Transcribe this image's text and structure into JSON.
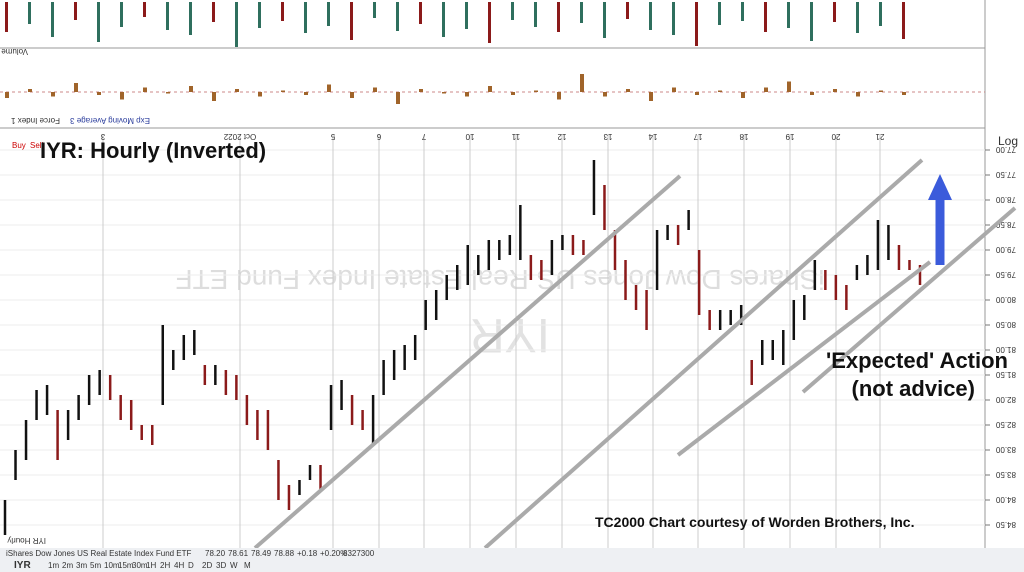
{
  "toolbar": {
    "symbol": "IYR",
    "intervals": [
      "1m",
      "2m",
      "3m",
      "5m",
      "10m",
      "15m",
      "30m",
      "1H",
      "2H",
      "4H",
      "D",
      "2D",
      "3D",
      "W",
      "M"
    ]
  },
  "status": {
    "name": "iShares Dow Jones US Real Estate Index Fund ETF",
    "quote": [
      "78.20",
      "78.61",
      "78.49",
      "78.88",
      "+0.18",
      "+0.20%",
      "8327300"
    ],
    "symbol": "IYR Hourly"
  },
  "panels": {
    "volume": {
      "label": "Volume",
      "values": [
        30,
        22,
        35,
        18,
        40,
        25,
        15,
        28,
        33,
        20,
        45,
        26,
        19,
        31,
        24,
        38,
        16,
        29,
        22,
        35,
        27,
        41,
        18,
        25,
        30,
        21,
        36,
        17,
        28,
        33,
        44,
        23,
        19,
        30,
        26,
        39,
        20,
        31,
        24,
        37
      ]
    },
    "force": {
      "labels": [
        "Force Index 1",
        "Exp Moving Average 3"
      ],
      "values": [
        4,
        -2,
        3,
        -6,
        2,
        5,
        -3,
        1,
        -4,
        6,
        -2,
        3,
        -1,
        2,
        -5,
        4,
        -3,
        8,
        -2,
        1,
        3,
        -4,
        2,
        -1,
        5,
        -12,
        3,
        -2,
        6,
        -3,
        2,
        -1,
        4,
        -3,
        -7,
        2,
        -2,
        3,
        -1,
        2
      ]
    }
  },
  "chart_data": {
    "type": "ohlc",
    "title": "IYR:  Hourly (Inverted)",
    "buttons": [
      "Buy",
      "Sell"
    ],
    "scale_label": "Log",
    "annotations": [
      "'Expected' Action",
      "(not advice)"
    ],
    "credit": "TC2000 Chart courtesy of Worden Brothers, Inc.",
    "watermark": "iShares Dow Jones US Real Estate Index Fund ETF",
    "watermark_symbol": "IYR",
    "x_labels": [
      "3",
      "Oct 2022",
      "5",
      "6",
      "7",
      "10",
      "11",
      "12",
      "13",
      "14",
      "17",
      "18",
      "19",
      "20",
      "21"
    ],
    "low": [
      84.0,
      83.0,
      82.4,
      81.8,
      81.7,
      82.2,
      82.2,
      81.9,
      81.5,
      81.4,
      81.5,
      81.9,
      82.0,
      82.5,
      82.5,
      80.5,
      81.0,
      80.7,
      80.6,
      81.3,
      81.3,
      81.4,
      81.5,
      81.9,
      82.2,
      82.2,
      83.2,
      83.7,
      83.6,
      83.3,
      83.3,
      81.7,
      81.6,
      81.9,
      82.2,
      81.9,
      81.2,
      81.0,
      80.9,
      80.7,
      80.0,
      79.8,
      79.5,
      79.3,
      78.9,
      79.1,
      78.8,
      78.8,
      78.7,
      78.1,
      79.1,
      79.2,
      78.8,
      78.7,
      78.7,
      78.8,
      77.2,
      77.7,
      78.6,
      79.2,
      79.7,
      79.8,
      78.6,
      78.5,
      78.5,
      78.2,
      79.0,
      80.2,
      80.2,
      80.2,
      80.1,
      81.2,
      80.8,
      80.8,
      80.6,
      80.0,
      79.9,
      79.2,
      79.4,
      79.5,
      79.7,
      79.3,
      79.1,
      78.4,
      78.5,
      78.9,
      79.2,
      79.3
    ],
    "high": [
      84.7,
      83.6,
      83.2,
      82.4,
      82.3,
      83.2,
      82.8,
      82.4,
      82.1,
      81.9,
      82.0,
      82.4,
      82.6,
      82.8,
      82.9,
      82.1,
      81.4,
      81.2,
      81.1,
      81.7,
      81.7,
      81.9,
      82.0,
      82.5,
      82.8,
      83.0,
      84.0,
      84.2,
      83.9,
      83.6,
      83.8,
      82.6,
      82.2,
      82.5,
      82.6,
      82.9,
      81.9,
      81.6,
      81.4,
      81.2,
      80.6,
      80.4,
      80.0,
      79.8,
      79.7,
      79.5,
      79.4,
      79.2,
      79.1,
      79.2,
      79.6,
      79.6,
      79.5,
      79.0,
      79.1,
      79.1,
      78.3,
      78.6,
      79.4,
      80.0,
      80.2,
      80.6,
      79.8,
      78.8,
      78.9,
      78.6,
      80.3,
      80.6,
      80.6,
      80.5,
      80.5,
      81.7,
      81.3,
      81.2,
      81.3,
      80.8,
      80.4,
      79.8,
      79.8,
      80.0,
      80.2,
      79.6,
      79.5,
      79.4,
      79.2,
      79.4,
      79.4,
      79.7
    ],
    "colors": {
      "up": "#8b1a1a",
      "down": "#111111"
    },
    "inverted": true,
    "ylim": [
      77,
      84.9
    ],
    "yticks": [
      {
        "value": 77,
        "label": "77.00"
      },
      {
        "value": 77.5,
        "label": "77.50"
      },
      {
        "value": 78,
        "label": "78.00"
      },
      {
        "value": 78.5,
        "label": "78.50"
      },
      {
        "value": 79,
        "label": "79.00"
      },
      {
        "value": 79.5,
        "label": "79.50"
      },
      {
        "value": 80,
        "label": "80.00"
      },
      {
        "value": 80.5,
        "label": "80.50"
      },
      {
        "value": 81,
        "label": "81.00"
      },
      {
        "value": 81.5,
        "label": "81.50"
      },
      {
        "value": 82,
        "label": "82.00"
      },
      {
        "value": 82.5,
        "label": "82.50"
      },
      {
        "value": 83,
        "label": "83.00"
      },
      {
        "value": 83.5,
        "label": "83.50"
      },
      {
        "value": 84,
        "label": "84.00"
      },
      {
        "value": 84.5,
        "label": "84.50"
      }
    ],
    "grid": true
  }
}
